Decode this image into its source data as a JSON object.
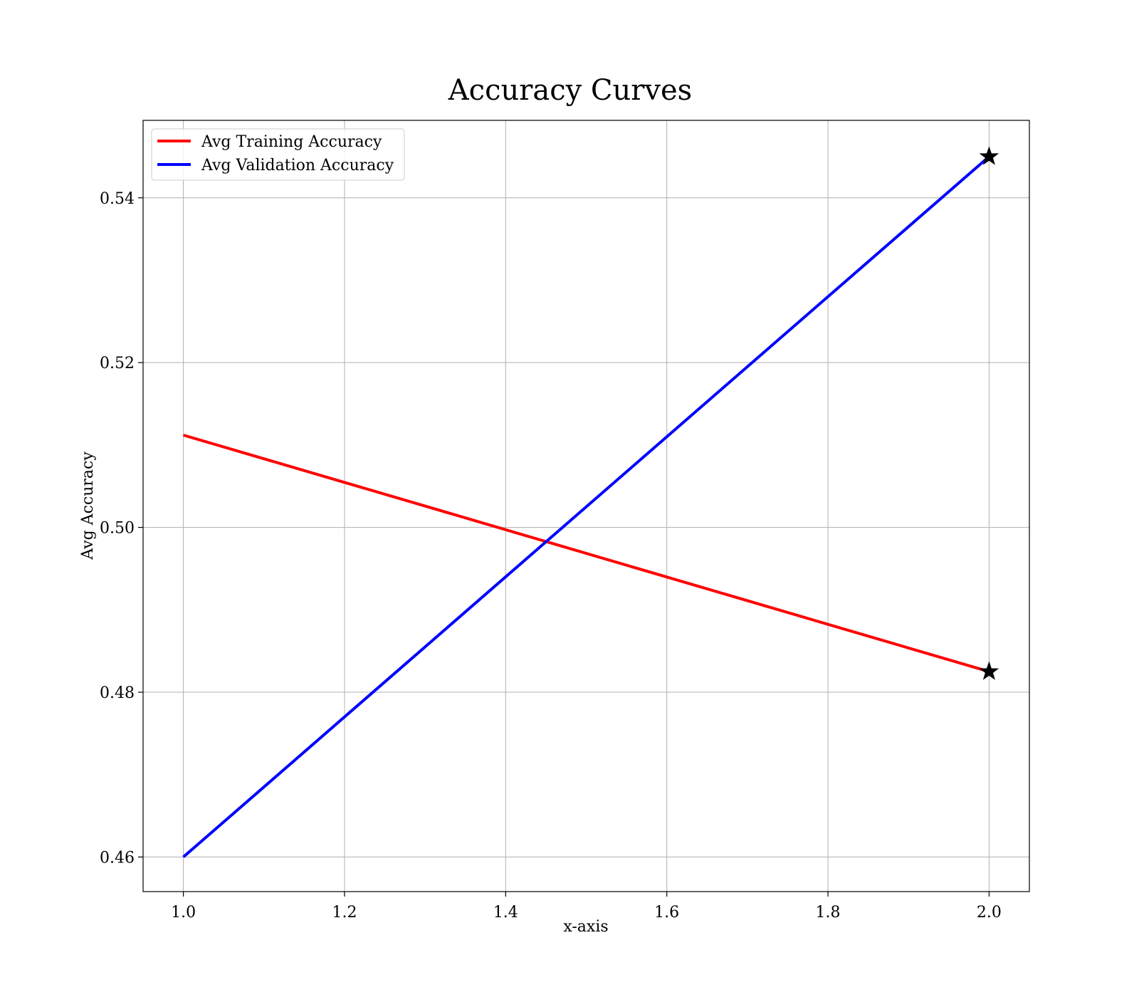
{
  "chart_data": {
    "type": "line",
    "title": "Accuracy Curves",
    "xlabel": "x-axis",
    "ylabel": "Avg Accuracy",
    "xlim": [
      0.95,
      2.05
    ],
    "ylim": [
      0.4558,
      0.5494
    ],
    "xticks": [
      1.0,
      1.2,
      1.4,
      1.6,
      1.8,
      2.0
    ],
    "xtick_labels": [
      "1.0",
      "1.2",
      "1.4",
      "1.6",
      "1.8",
      "2.0"
    ],
    "yticks": [
      0.46,
      0.48,
      0.5,
      0.52,
      0.54
    ],
    "ytick_labels": [
      "0.46",
      "0.48",
      "0.50",
      "0.52",
      "0.54"
    ],
    "grid": true,
    "legend_position": "top-left",
    "series": [
      {
        "name": "Avg Training Accuracy",
        "color": "#ff0000",
        "x": [
          1.0,
          2.0
        ],
        "y": [
          0.5112,
          0.4825
        ],
        "marker_at_last": "star"
      },
      {
        "name": "Avg Validation Accuracy",
        "color": "#0000ff",
        "x": [
          1.0,
          2.0
        ],
        "y": [
          0.46,
          0.545
        ],
        "marker_at_last": "star"
      }
    ]
  }
}
